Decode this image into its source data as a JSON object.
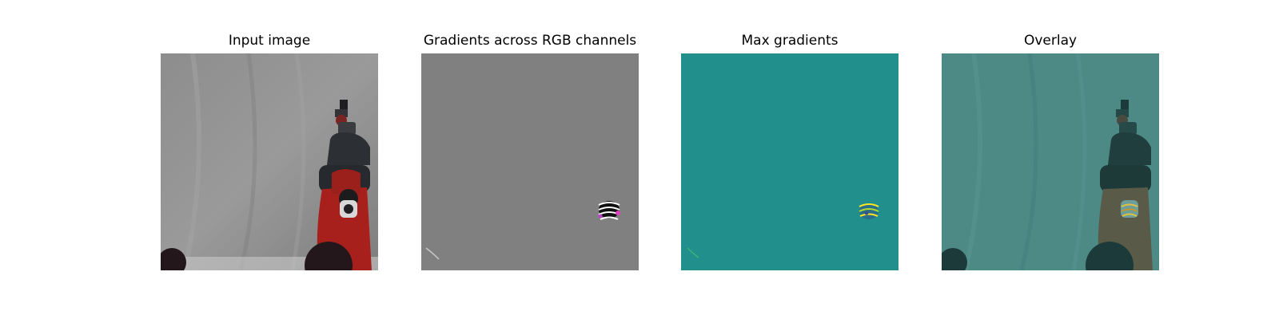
{
  "panels": [
    {
      "title": "Input image"
    },
    {
      "title": "Gradients across RGB channels"
    },
    {
      "title": "Max gradients"
    },
    {
      "title": "Overlay"
    }
  ],
  "colors": {
    "background_gray": "#8a8a8a",
    "gradient_gray": "#808080",
    "max_gradient_teal": "#21908d",
    "overlay_teal": "#4c8a86",
    "robot_red": "#a8201c",
    "robot_dark": "#2c2f33",
    "highlight_yellow": "#fde725"
  }
}
